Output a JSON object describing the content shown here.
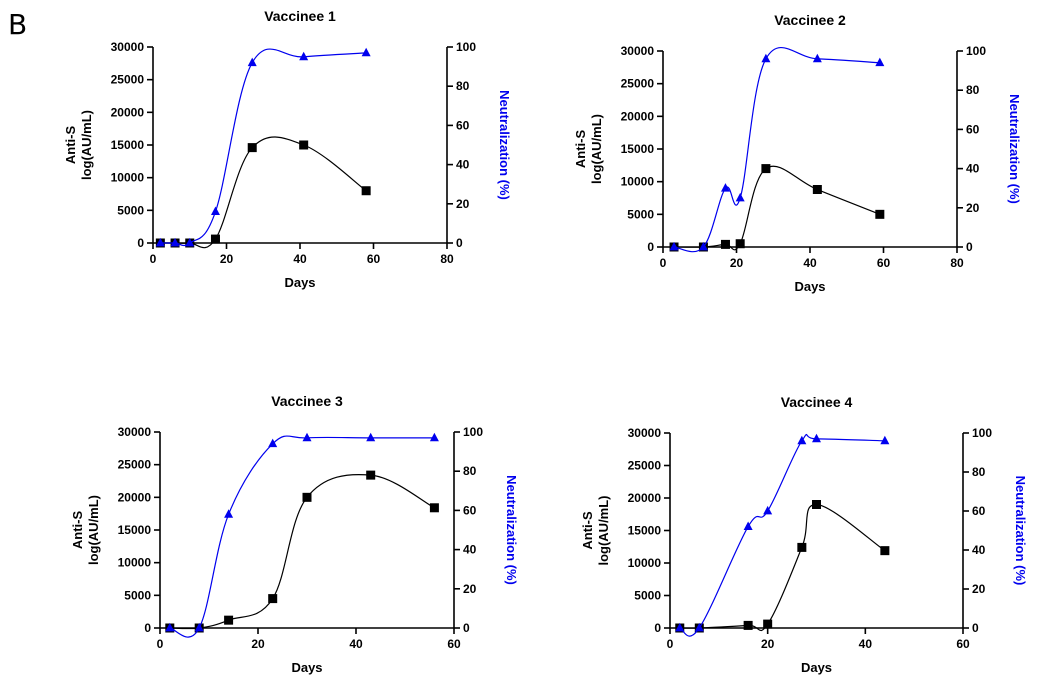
{
  "panel_label": "B",
  "colors": {
    "anti_s": "#000000",
    "neutralization": "#0000ee"
  },
  "chart_data": [
    {
      "type": "line",
      "title": "Vaccinee 1",
      "xlabel": "Days",
      "ylabel_line1": "Anti-S",
      "ylabel_line2": "log(AU/mL)",
      "y2label": "Neutralization (%)",
      "xlim": [
        0,
        80
      ],
      "xticks": [
        0,
        20,
        40,
        60,
        80
      ],
      "ylim": [
        0,
        30000
      ],
      "yticks": [
        0,
        5000,
        10000,
        15000,
        20000,
        25000,
        30000
      ],
      "y2lim": [
        0,
        100
      ],
      "y2ticks": [
        0,
        20,
        40,
        60,
        80,
        100
      ],
      "series": [
        {
          "axis": "left",
          "marker": "square",
          "x": [
            2,
            6,
            10,
            17,
            27,
            41,
            58
          ],
          "y": [
            0,
            0,
            0,
            600,
            14600,
            15000,
            8000
          ]
        },
        {
          "axis": "right",
          "marker": "triangle",
          "x": [
            2,
            6,
            10,
            17,
            27,
            41,
            58
          ],
          "y": [
            0,
            0,
            0,
            16,
            92,
            95,
            97
          ]
        }
      ]
    },
    {
      "type": "line",
      "title": "Vaccinee 2",
      "xlabel": "Days",
      "ylabel_line1": "Anti-S",
      "ylabel_line2": "log(AU/mL)",
      "y2label": "Neutralization (%)",
      "xlim": [
        0,
        80
      ],
      "xticks": [
        0,
        20,
        40,
        60,
        80
      ],
      "ylim": [
        0,
        30000
      ],
      "yticks": [
        0,
        5000,
        10000,
        15000,
        20000,
        25000,
        30000
      ],
      "y2lim": [
        0,
        100
      ],
      "y2ticks": [
        0,
        20,
        40,
        60,
        80,
        100
      ],
      "series": [
        {
          "axis": "left",
          "marker": "square",
          "x": [
            3,
            11,
            17,
            21,
            28,
            42,
            59
          ],
          "y": [
            0,
            0,
            400,
            500,
            12000,
            8800,
            5000
          ]
        },
        {
          "axis": "right",
          "marker": "triangle",
          "x": [
            3,
            11,
            17,
            21,
            28,
            42,
            59
          ],
          "y": [
            0,
            0,
            30,
            25,
            96,
            96,
            94
          ]
        }
      ]
    },
    {
      "type": "line",
      "title": "Vaccinee 3",
      "xlabel": "Days",
      "ylabel_line1": "Anti-S",
      "ylabel_line2": "log(AU/mL)",
      "y2label": "Neutralization (%)",
      "xlim": [
        0,
        60
      ],
      "xticks": [
        0,
        20,
        40,
        60
      ],
      "ylim": [
        0,
        30000
      ],
      "yticks": [
        0,
        5000,
        10000,
        15000,
        20000,
        25000,
        30000
      ],
      "y2lim": [
        0,
        100
      ],
      "y2ticks": [
        0,
        20,
        40,
        60,
        80,
        100
      ],
      "series": [
        {
          "axis": "left",
          "marker": "square",
          "x": [
            2,
            8,
            14,
            23,
            30,
            43,
            56
          ],
          "y": [
            0,
            0,
            1200,
            4500,
            20000,
            23400,
            18400
          ]
        },
        {
          "axis": "right",
          "marker": "triangle",
          "x": [
            2,
            8,
            14,
            23,
            30,
            43,
            56
          ],
          "y": [
            0,
            0,
            58,
            94,
            97,
            97,
            97
          ]
        }
      ]
    },
    {
      "type": "line",
      "title": "Vaccinee 4",
      "xlabel": "Days",
      "ylabel_line1": "Anti-S",
      "ylabel_line2": "log(AU/mL)",
      "y2label": "Neutralization (%)",
      "xlim": [
        0,
        60
      ],
      "xticks": [
        0,
        20,
        40,
        60
      ],
      "ylim": [
        0,
        30000
      ],
      "yticks": [
        0,
        5000,
        10000,
        15000,
        20000,
        25000,
        30000
      ],
      "y2lim": [
        0,
        100
      ],
      "y2ticks": [
        0,
        20,
        40,
        60,
        80,
        100
      ],
      "series": [
        {
          "axis": "left",
          "marker": "square",
          "x": [
            2,
            6,
            16,
            20,
            27,
            30,
            44
          ],
          "y": [
            0,
            0,
            400,
            600,
            12400,
            19000,
            11900
          ]
        },
        {
          "axis": "right",
          "marker": "triangle",
          "x": [
            2,
            6,
            16,
            20,
            27,
            30,
            44
          ],
          "y": [
            0,
            0,
            52,
            60,
            96,
            97,
            96
          ]
        }
      ]
    }
  ]
}
